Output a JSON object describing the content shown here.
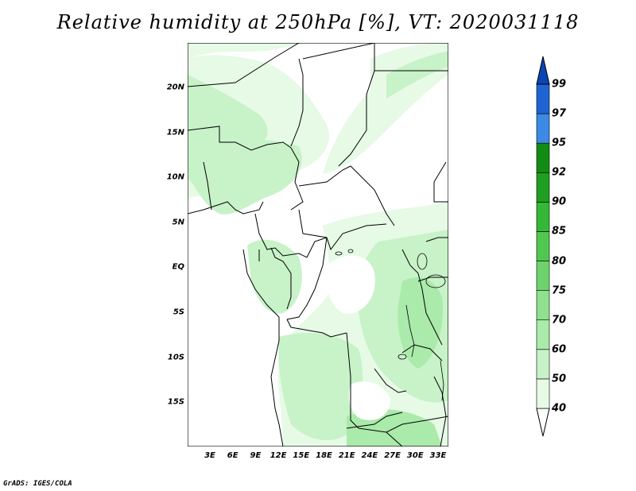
{
  "title": "Relative humidity at 250hPa [%], VT: 2020031118",
  "credit": "GrADS: IGES/COLA",
  "lat_labels": [
    "20N",
    "15N",
    "10N",
    "5N",
    "EQ",
    "5S",
    "10S",
    "15S"
  ],
  "lon_labels": [
    "3E",
    "6E",
    "9E",
    "12E",
    "15E",
    "18E",
    "21E",
    "24E",
    "27E",
    "30E",
    "33E"
  ],
  "colorbar": {
    "levels": [
      "40",
      "50",
      "60",
      "70",
      "75",
      "80",
      "85",
      "90",
      "92",
      "95",
      "97",
      "99"
    ],
    "colors": [
      "#ffffff",
      "#e6fae6",
      "#c8f2c8",
      "#aaeaaa",
      "#8fe08f",
      "#6dd46d",
      "#50c850",
      "#35b835",
      "#1f9f1f",
      "#128c12",
      "#3c8ae6",
      "#1e64d2",
      "#0a46b4"
    ]
  },
  "shading_colors": {
    "light": "#e6fae6",
    "medium": "#c8f2c8",
    "strong": "#aaeaaa",
    "deep": "#8fe08f"
  }
}
